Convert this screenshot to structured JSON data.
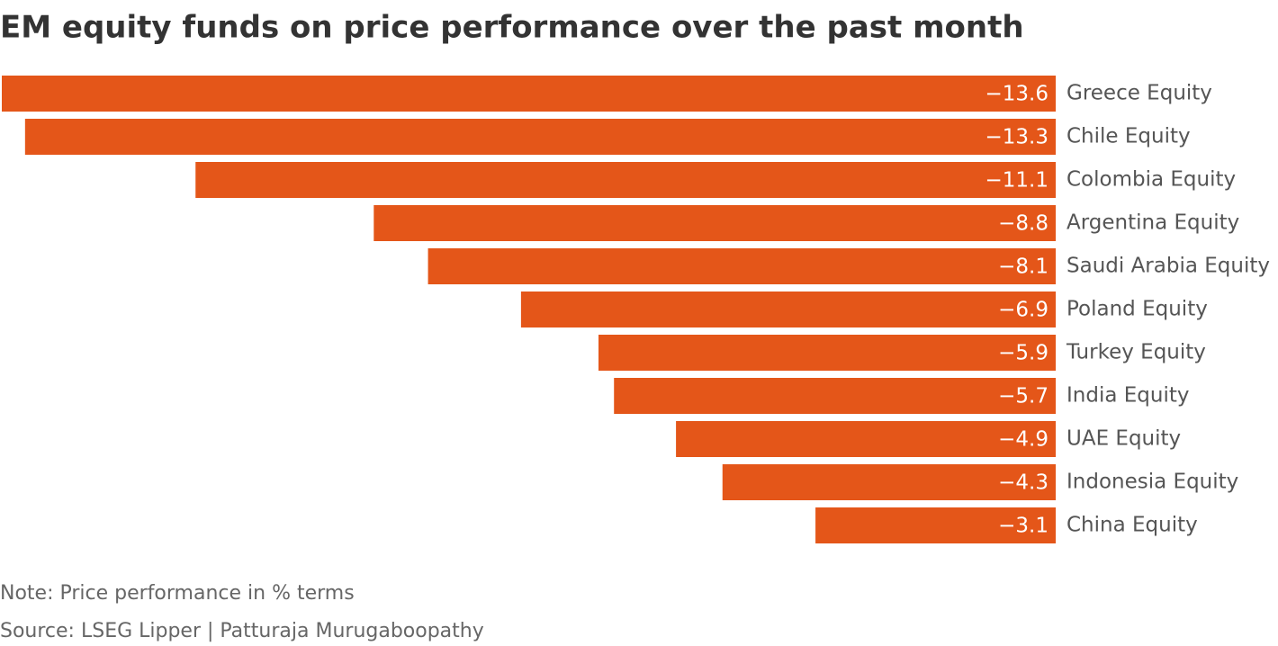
{
  "chart_data": {
    "type": "bar",
    "title": "EM equity funds on price performance over the past month",
    "categories": [
      "Greece Equity",
      "Chile Equity",
      "Colombia Equity",
      "Argentina Equity",
      "Saudi Arabia Equity",
      "Poland Equity",
      "Turkey Equity",
      "India Equity",
      "UAE Equity",
      "Indonesia Equity",
      "China Equity"
    ],
    "values": [
      -13.6,
      -13.3,
      -11.1,
      -8.8,
      -8.1,
      -6.9,
      -5.9,
      -5.7,
      -4.9,
      -4.3,
      -3.1
    ],
    "value_labels": [
      "−13.6",
      "−13.3",
      "−11.1",
      "−8.8",
      "−8.1",
      "−6.9",
      "−5.9",
      "−5.7",
      "−4.9",
      "−4.3",
      "−3.1"
    ],
    "color": "#e45619",
    "note": "Note: Price performance in % terms",
    "source": "Source: LSEG Lipper | Patturaja Murugaboopathy"
  }
}
